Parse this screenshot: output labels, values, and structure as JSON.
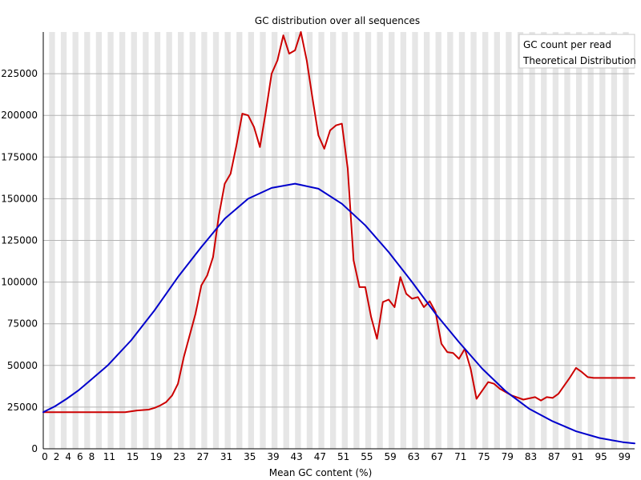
{
  "chart_data": {
    "type": "line",
    "title": "GC distribution over all sequences",
    "xlabel": "Mean GC content (%)",
    "ylabel": "",
    "xlim": [
      0,
      101
    ],
    "ylim": [
      0,
      250000
    ],
    "x_ticks": [
      0,
      2,
      4,
      6,
      8,
      11,
      15,
      19,
      23,
      27,
      31,
      35,
      39,
      43,
      47,
      51,
      55,
      59,
      63,
      67,
      71,
      75,
      79,
      83,
      87,
      91,
      95,
      99
    ],
    "y_ticks": [
      0,
      25000,
      50000,
      75000,
      100000,
      125000,
      150000,
      175000,
      200000,
      225000
    ],
    "y_tick_labels": [
      "0",
      "25000",
      "50000",
      "75000",
      "100000",
      "125000",
      "150000",
      "175000",
      "200000",
      "225000"
    ],
    "grid": "horizontal lines, alternating vertical bands",
    "legend_position": "top-right",
    "series": [
      {
        "name": "GC count per read",
        "color": "#cc0000",
        "points": [
          [
            0,
            22000
          ],
          [
            14,
            22000
          ],
          [
            16,
            23000
          ],
          [
            18,
            23500
          ],
          [
            19,
            24500
          ],
          [
            20,
            26000
          ],
          [
            21,
            28000
          ],
          [
            22,
            32000
          ],
          [
            23,
            39000
          ],
          [
            24,
            55000
          ],
          [
            25,
            68000
          ],
          [
            26,
            81000
          ],
          [
            27,
            98000
          ],
          [
            28,
            104000
          ],
          [
            29,
            115000
          ],
          [
            30,
            140000
          ],
          [
            31,
            159000
          ],
          [
            32,
            165000
          ],
          [
            33,
            182000
          ],
          [
            34,
            201000
          ],
          [
            35,
            200000
          ],
          [
            36,
            193000
          ],
          [
            37,
            181000
          ],
          [
            38,
            202000
          ],
          [
            39,
            225000
          ],
          [
            40,
            233000
          ],
          [
            41,
            248000
          ],
          [
            42,
            237000
          ],
          [
            43,
            239000
          ],
          [
            44,
            250000
          ],
          [
            45,
            233000
          ],
          [
            46,
            210000
          ],
          [
            47,
            188000
          ],
          [
            48,
            180000
          ],
          [
            49,
            191000
          ],
          [
            50,
            194000
          ],
          [
            51,
            195000
          ],
          [
            52,
            168000
          ],
          [
            53,
            113000
          ],
          [
            54,
            97000
          ],
          [
            55,
            97000
          ],
          [
            56,
            79000
          ],
          [
            57,
            66000
          ],
          [
            58,
            88000
          ],
          [
            59,
            89500
          ],
          [
            60,
            85000
          ],
          [
            61,
            103000
          ],
          [
            62,
            93000
          ],
          [
            63,
            90000
          ],
          [
            64,
            91000
          ],
          [
            65,
            85000
          ],
          [
            66,
            88500
          ],
          [
            67,
            82000
          ],
          [
            68,
            63000
          ],
          [
            69,
            58000
          ],
          [
            70,
            57500
          ],
          [
            71,
            54000
          ],
          [
            72,
            60000
          ],
          [
            73,
            48000
          ],
          [
            74,
            30000
          ],
          [
            75,
            35000
          ],
          [
            76,
            40000
          ],
          [
            77,
            39000
          ],
          [
            78,
            36000
          ],
          [
            80,
            32000
          ],
          [
            82,
            29500
          ],
          [
            84,
            31000
          ],
          [
            85,
            29000
          ],
          [
            86,
            31000
          ],
          [
            87,
            30500
          ],
          [
            88,
            33000
          ],
          [
            89,
            38000
          ],
          [
            90,
            43000
          ],
          [
            91,
            48500
          ],
          [
            92,
            46000
          ],
          [
            93,
            43000
          ],
          [
            94,
            42500
          ],
          [
            101,
            42500
          ]
        ]
      },
      {
        "name": "Theoretical Distribution",
        "color": "#0000cc",
        "points": [
          [
            0,
            22000
          ],
          [
            2,
            25500
          ],
          [
            4,
            30000
          ],
          [
            6,
            35000
          ],
          [
            8,
            41000
          ],
          [
            11,
            50000
          ],
          [
            15,
            65000
          ],
          [
            19,
            83000
          ],
          [
            23,
            103000
          ],
          [
            27,
            121000
          ],
          [
            31,
            138000
          ],
          [
            35,
            150000
          ],
          [
            39,
            156500
          ],
          [
            43,
            159000
          ],
          [
            47,
            156000
          ],
          [
            51,
            147000
          ],
          [
            55,
            134000
          ],
          [
            59,
            118000
          ],
          [
            63,
            100000
          ],
          [
            67,
            81000
          ],
          [
            71,
            64000
          ],
          [
            75,
            48000
          ],
          [
            79,
            34500
          ],
          [
            83,
            24000
          ],
          [
            87,
            16500
          ],
          [
            91,
            10500
          ],
          [
            95,
            6500
          ],
          [
            99,
            4000
          ],
          [
            101,
            3200
          ]
        ]
      }
    ]
  }
}
